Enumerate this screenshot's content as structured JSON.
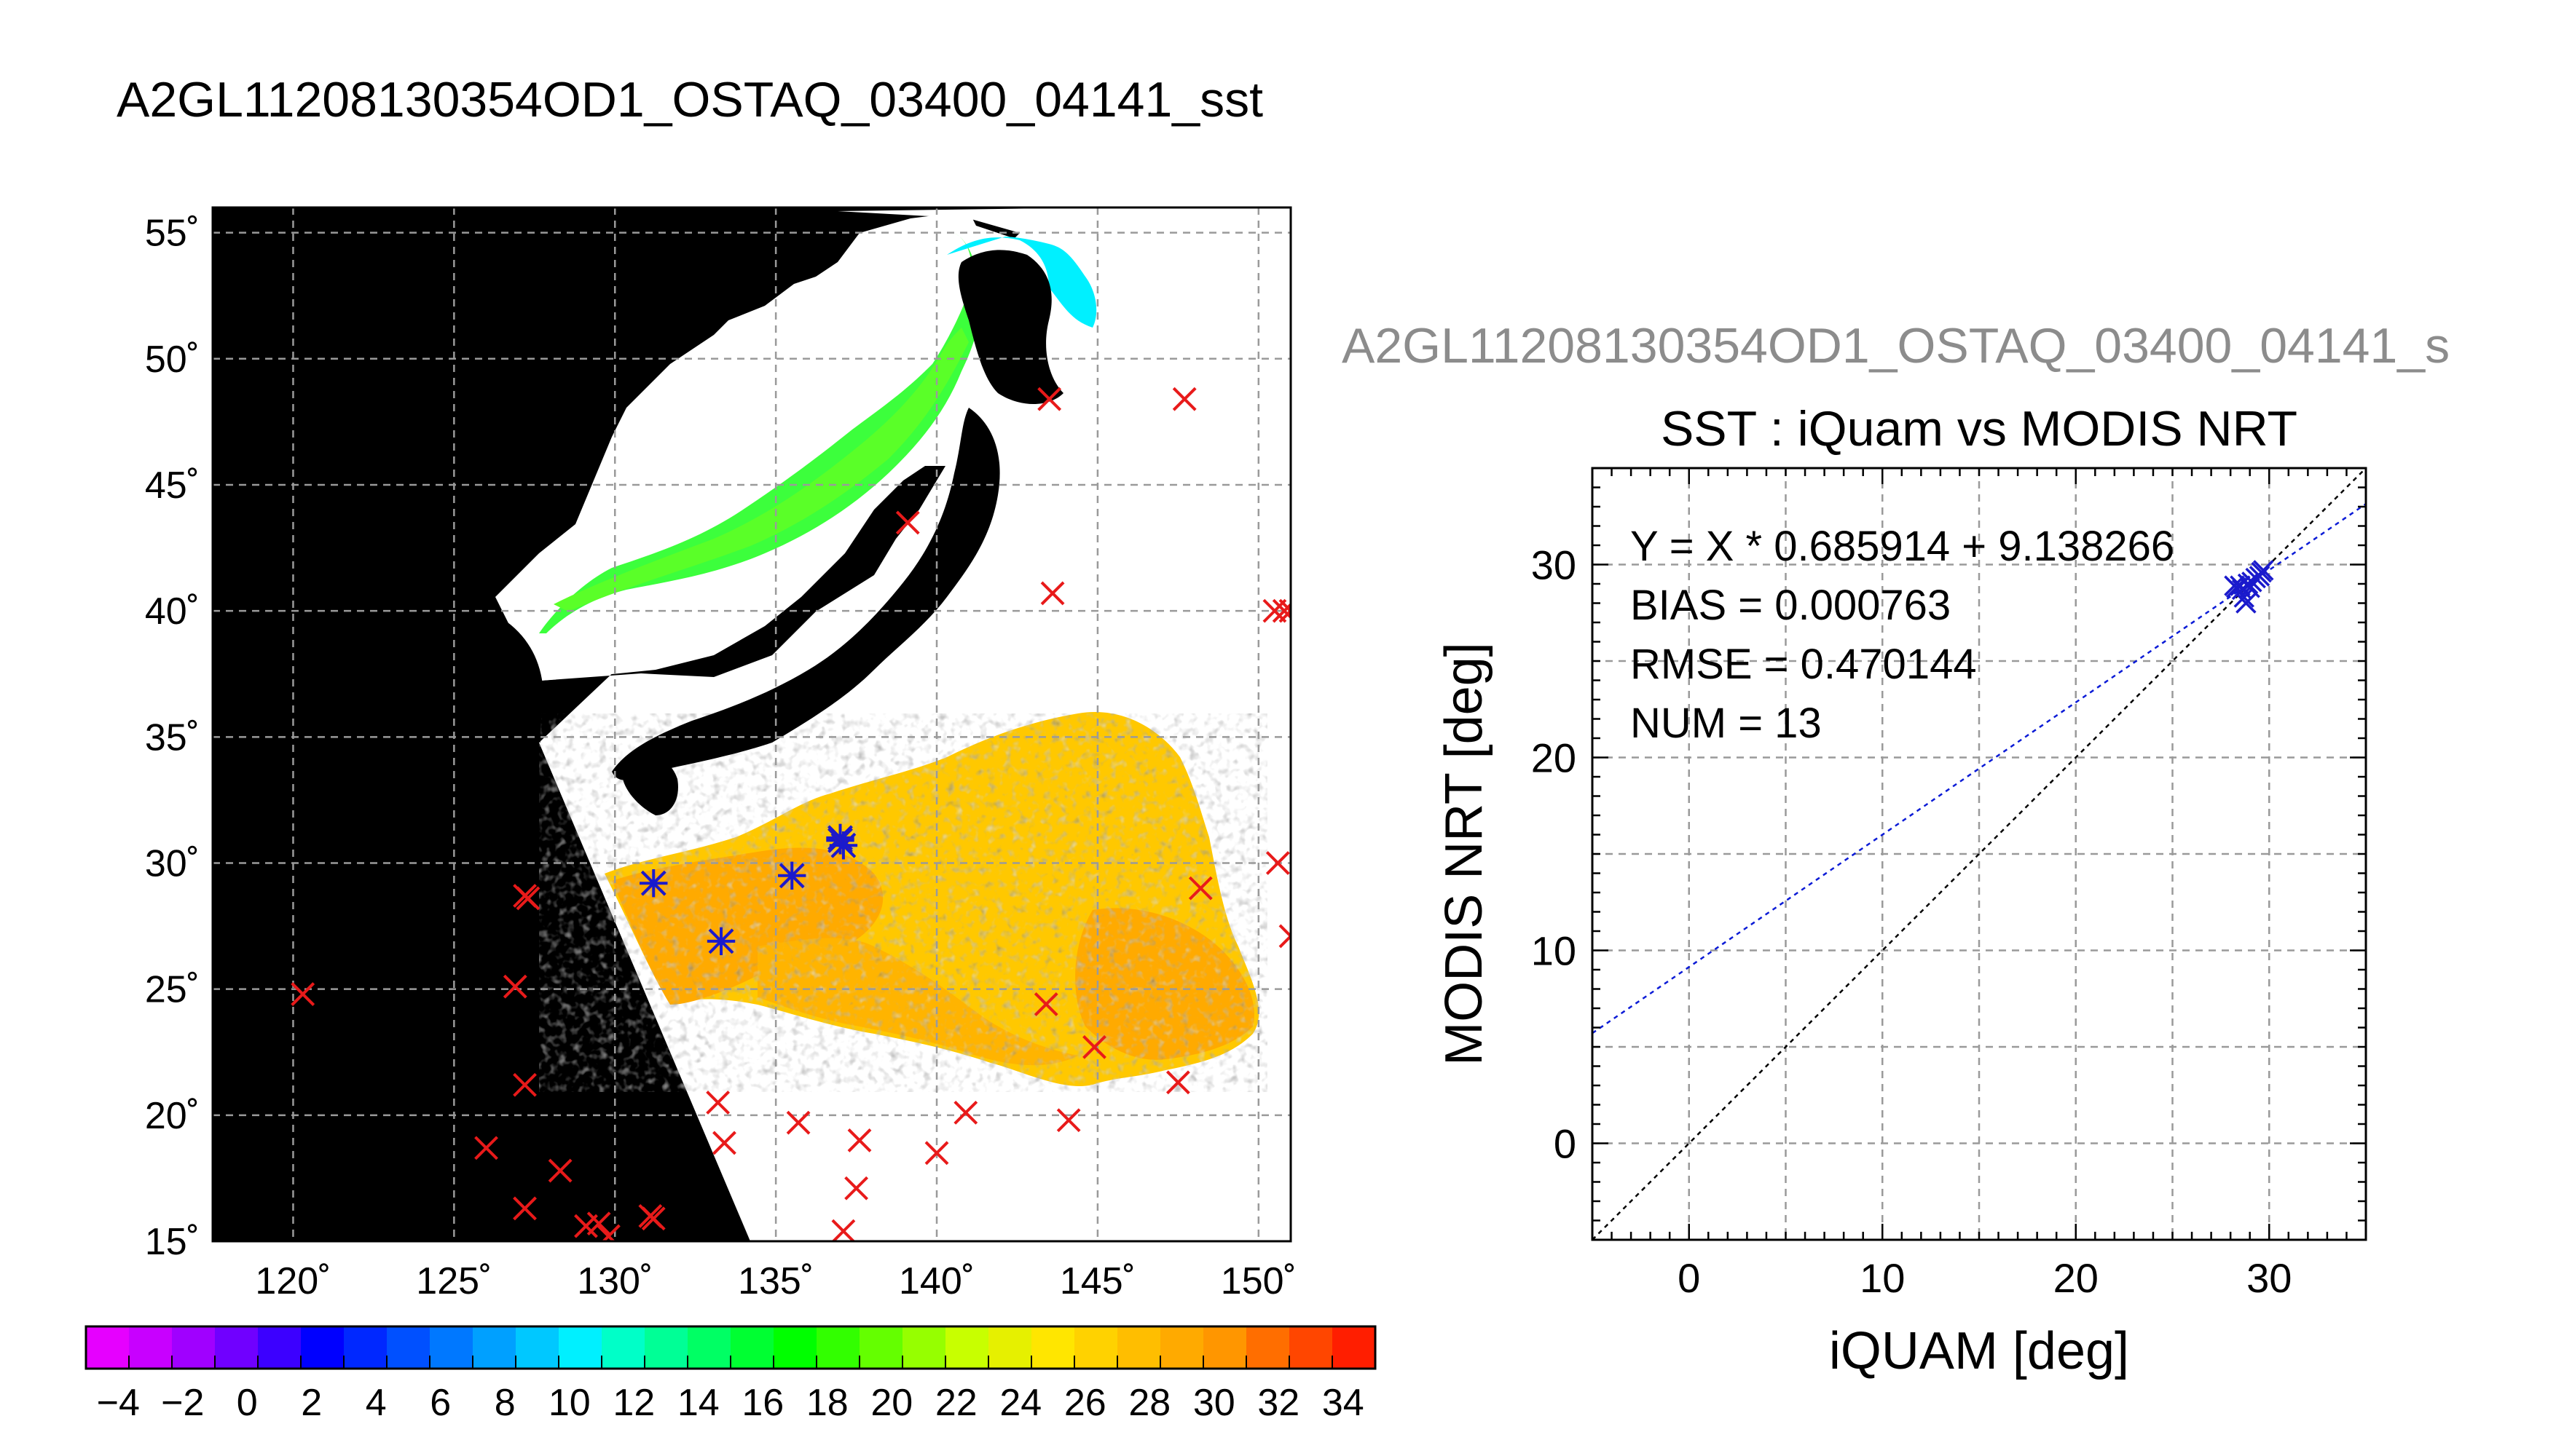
{
  "page": {
    "main_title": "A2GL11208130354OD1_OSTAQ_03400_04141_sst",
    "sub_title": "A2GL11208130354OD1_OSTAQ_03400_04141_s"
  },
  "colors": {
    "background": "#ffffff",
    "land_mask": "#000000",
    "no_data": "#ffffff",
    "marker_matched": "#1a1acc",
    "marker_unmatched": "#e81a1a",
    "fit_line": "#0b1bd6",
    "identity_line": "#000000",
    "subtitle_text": "#8c8c8c"
  },
  "chart_data": [
    {
      "type": "map",
      "title": "",
      "xlim": [
        117.5,
        151
      ],
      "ylim": [
        15,
        56
      ],
      "x_ticks": [
        120,
        125,
        130,
        135,
        140,
        145,
        150
      ],
      "y_ticks": [
        15,
        20,
        25,
        30,
        35,
        40,
        45,
        50,
        55
      ],
      "x_tick_labels": [
        "120˚",
        "125˚",
        "130˚",
        "135˚",
        "140˚",
        "145˚",
        "150˚"
      ],
      "y_tick_labels": [
        "15˚",
        "20˚",
        "25˚",
        "30˚",
        "35˚",
        "40˚",
        "45˚",
        "50˚",
        "55˚"
      ],
      "grid": true,
      "field": "sst",
      "matched_points": [
        {
          "lon": 131.2,
          "lat": 29.2
        },
        {
          "lon": 133.3,
          "lat": 26.9
        },
        {
          "lon": 135.5,
          "lat": 29.5
        },
        {
          "lon": 137.0,
          "lat": 30.9
        },
        {
          "lon": 137.0,
          "lat": 31.0
        },
        {
          "lon": 137.1,
          "lat": 30.7
        }
      ],
      "unmatched_points": [
        {
          "lon": 143.5,
          "lat": 48.4
        },
        {
          "lon": 147.7,
          "lat": 48.4
        },
        {
          "lon": 139.1,
          "lat": 43.5
        },
        {
          "lon": 143.6,
          "lat": 40.7
        },
        {
          "lon": 150.5,
          "lat": 40.0
        },
        {
          "lon": 150.8,
          "lat": 40.0
        },
        {
          "lon": 151.0,
          "lat": 40.0
        },
        {
          "lon": 150.6,
          "lat": 30.0
        },
        {
          "lon": 151.0,
          "lat": 27.1
        },
        {
          "lon": 148.2,
          "lat": 29.0
        },
        {
          "lon": 127.2,
          "lat": 28.7
        },
        {
          "lon": 127.3,
          "lat": 28.6
        },
        {
          "lon": 126.9,
          "lat": 25.1
        },
        {
          "lon": 120.3,
          "lat": 24.8
        },
        {
          "lon": 127.2,
          "lat": 21.2
        },
        {
          "lon": 143.4,
          "lat": 24.4
        },
        {
          "lon": 144.9,
          "lat": 22.7
        },
        {
          "lon": 147.5,
          "lat": 21.3
        },
        {
          "lon": 144.1,
          "lat": 19.8
        },
        {
          "lon": 133.2,
          "lat": 20.5
        },
        {
          "lon": 133.4,
          "lat": 18.9
        },
        {
          "lon": 135.7,
          "lat": 19.7
        },
        {
          "lon": 137.6,
          "lat": 19.0
        },
        {
          "lon": 140.9,
          "lat": 20.1
        },
        {
          "lon": 140.0,
          "lat": 18.5
        },
        {
          "lon": 126.0,
          "lat": 18.7
        },
        {
          "lon": 128.3,
          "lat": 17.8
        },
        {
          "lon": 127.2,
          "lat": 16.3
        },
        {
          "lon": 129.1,
          "lat": 15.6
        },
        {
          "lon": 129.5,
          "lat": 15.7
        },
        {
          "lon": 129.8,
          "lat": 15.2
        },
        {
          "lon": 131.1,
          "lat": 16.0
        },
        {
          "lon": 131.2,
          "lat": 15.9
        },
        {
          "lon": 137.5,
          "lat": 17.1
        },
        {
          "lon": 137.1,
          "lat": 15.4
        }
      ]
    },
    {
      "type": "colorbar",
      "range": [
        -5,
        35
      ],
      "tick_values": [
        -4,
        -2,
        0,
        2,
        4,
        6,
        8,
        10,
        12,
        14,
        16,
        18,
        20,
        22,
        24,
        26,
        28,
        30,
        32,
        34
      ],
      "tick_labels": [
        "−4",
        "−2",
        "0",
        "2",
        "4",
        "6",
        "8",
        "10",
        "12",
        "14",
        "16",
        "18",
        "20",
        "22",
        "24",
        "26",
        "28",
        "30",
        "32",
        "34"
      ],
      "colors": [
        "#e600ff",
        "#c800ff",
        "#a000ff",
        "#7000ff",
        "#3c00ff",
        "#0000ff",
        "#0028ff",
        "#0050ff",
        "#0078ff",
        "#00a0ff",
        "#00c8ff",
        "#00f0ff",
        "#00ffc8",
        "#00ff96",
        "#00ff64",
        "#00ff32",
        "#00ff00",
        "#32ff00",
        "#64ff00",
        "#96ff00",
        "#c8ff00",
        "#e6f000",
        "#ffe600",
        "#ffd200",
        "#ffbe00",
        "#ffaa00",
        "#ff9600",
        "#ff6e00",
        "#ff4600",
        "#ff1e00"
      ]
    },
    {
      "type": "scatter",
      "title": "SST : iQuam vs MODIS NRT",
      "xlabel": "iQUAM [deg]",
      "ylabel": "MODIS NRT [deg]",
      "xlim": [
        -5,
        35
      ],
      "ylim": [
        -5,
        35
      ],
      "x_ticks": [
        0,
        10,
        20,
        30
      ],
      "y_ticks": [
        0,
        10,
        20,
        30
      ],
      "grid": true,
      "stats": {
        "equation": "Y = X * 0.685914 + 9.138266",
        "bias": "BIAS = 0.000763",
        "rmse": "RMSE = 0.470144",
        "num": "NUM = 13"
      },
      "fit": {
        "slope": 0.685914,
        "intercept": 9.138266
      },
      "identity_line": true,
      "points": [
        {
          "x": 28.2,
          "y": 28.9
        },
        {
          "x": 28.3,
          "y": 28.8
        },
        {
          "x": 28.5,
          "y": 28.9
        },
        {
          "x": 28.6,
          "y": 28.7
        },
        {
          "x": 28.7,
          "y": 28.3
        },
        {
          "x": 28.8,
          "y": 28.0
        },
        {
          "x": 28.9,
          "y": 29.0
        },
        {
          "x": 29.0,
          "y": 28.8
        },
        {
          "x": 29.1,
          "y": 29.1
        },
        {
          "x": 29.3,
          "y": 29.3
        },
        {
          "x": 29.5,
          "y": 29.4
        },
        {
          "x": 29.6,
          "y": 29.6
        },
        {
          "x": 29.7,
          "y": 29.7
        }
      ]
    }
  ]
}
